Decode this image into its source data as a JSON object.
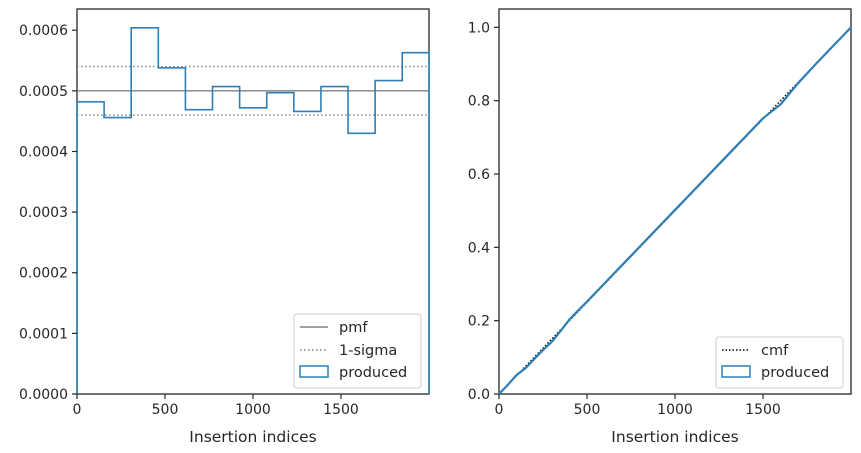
{
  "chart_data": [
    {
      "type": "histogram-step",
      "xlabel": "Insertion indices",
      "ylabel": "",
      "xlim": [
        0,
        2000
      ],
      "ylim": [
        0,
        0.000635
      ],
      "xticks": [
        "0",
        "500",
        "1000",
        "1500"
      ],
      "xtick_values": [
        0,
        500,
        1000,
        1500
      ],
      "yticks": [
        "0.0000",
        "0.0001",
        "0.0002",
        "0.0003",
        "0.0004",
        "0.0005",
        "0.0006"
      ],
      "ytick_values": [
        0,
        0.0001,
        0.0002,
        0.0003,
        0.0004,
        0.0005,
        0.0006
      ],
      "legend_position": "lower-right",
      "hlines": [
        {
          "name": "pmf",
          "y": 0.0005,
          "style": "solid",
          "color": "#808080"
        },
        {
          "name": "1-sigma",
          "y": 0.00054,
          "style": "dotted",
          "color": "#808080"
        },
        {
          "name": "1-sigma",
          "y": 0.00046,
          "style": "dotted",
          "color": "#808080"
        }
      ],
      "series": [
        {
          "name": "produced",
          "color": "#2f7fb5",
          "bin_edges": [
            0,
            154,
            308,
            462,
            616,
            770,
            924,
            1078,
            1232,
            1386,
            1540,
            1694,
            1848,
            2000
          ],
          "values": [
            0.000482,
            0.000456,
            0.000604,
            0.000538,
            0.000469,
            0.000507,
            0.000472,
            0.000497,
            0.000466,
            0.000507,
            0.00043,
            0.000517,
            0.000563
          ]
        }
      ],
      "legend": [
        {
          "label": "pmf",
          "kind": "line-solid",
          "color": "#808080"
        },
        {
          "label": "1-sigma",
          "kind": "line-dotted",
          "color": "#808080"
        },
        {
          "label": "produced",
          "kind": "patch",
          "color": "#2f7fb5"
        }
      ]
    },
    {
      "type": "line",
      "xlabel": "Insertion indices",
      "ylabel": "",
      "xlim": [
        0,
        2000
      ],
      "ylim": [
        0,
        1.05
      ],
      "xticks": [
        "0",
        "500",
        "1000",
        "1500"
      ],
      "xtick_values": [
        0,
        500,
        1000,
        1500
      ],
      "yticks": [
        "0.0",
        "0.2",
        "0.4",
        "0.6",
        "0.8",
        "1.0"
      ],
      "ytick_values": [
        0,
        0.2,
        0.4,
        0.6,
        0.8,
        1.0
      ],
      "legend_position": "lower-right",
      "series": [
        {
          "name": "cmf",
          "style": "dotted",
          "color": "#000000",
          "x": [
            0,
            2000
          ],
          "y": [
            0,
            1.0
          ]
        },
        {
          "name": "produced",
          "style": "solid",
          "color": "#2f7fb5",
          "x": [
            0,
            50,
            100,
            150,
            200,
            250,
            300,
            350,
            400,
            450,
            500,
            600,
            700,
            800,
            900,
            1000,
            1100,
            1200,
            1300,
            1400,
            1500,
            1600,
            1700,
            1800,
            1900,
            2000
          ],
          "y": [
            0,
            0.025,
            0.052,
            0.07,
            0.095,
            0.12,
            0.142,
            0.172,
            0.203,
            0.228,
            0.252,
            0.302,
            0.352,
            0.402,
            0.452,
            0.502,
            0.552,
            0.602,
            0.652,
            0.702,
            0.752,
            0.79,
            0.848,
            0.9,
            0.95,
            1.0
          ]
        }
      ],
      "legend": [
        {
          "label": "cmf",
          "kind": "line-dotted",
          "color": "#000000"
        },
        {
          "label": "produced",
          "kind": "patch",
          "color": "#2f7fb5"
        }
      ]
    }
  ]
}
